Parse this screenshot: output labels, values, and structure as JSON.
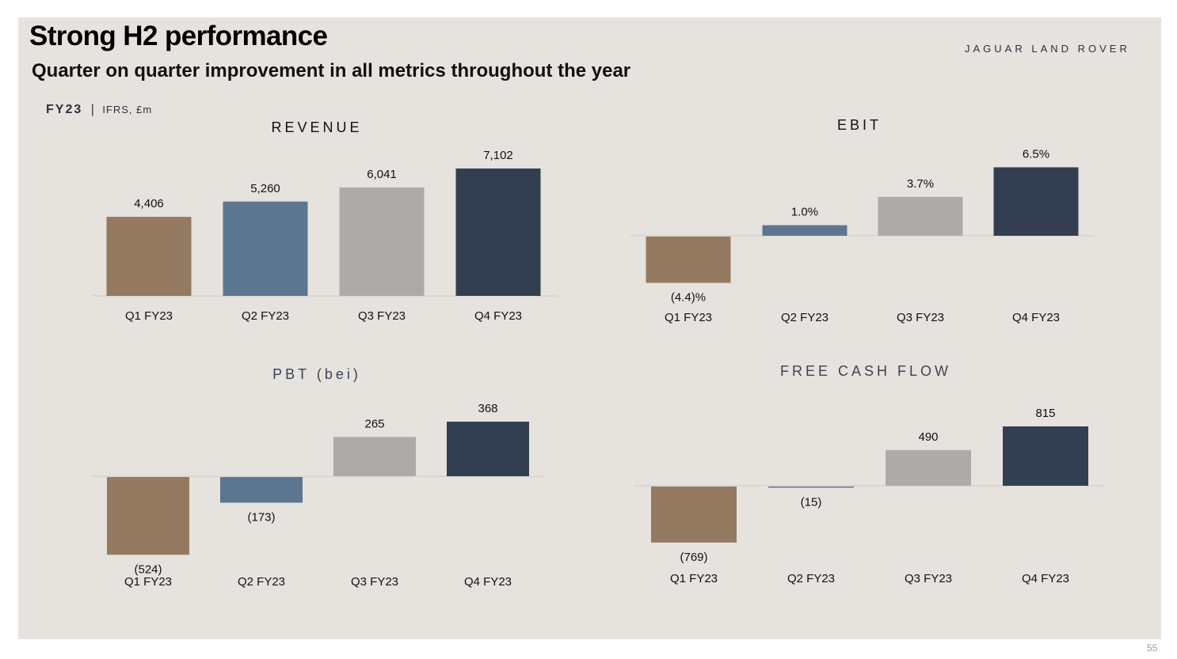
{
  "slide": {
    "title": "Strong H2 performance",
    "subtitle": "Quarter on quarter improvement in all metrics throughout the year",
    "brand": "JAGUAR LAND ROVER",
    "basis_year": "FY23",
    "basis_separator": "|",
    "basis_units": "IFRS, £m",
    "page_number": "55"
  },
  "colors": {
    "q1": "#937a61",
    "q2": "#5c7690",
    "q3": "#adaba9",
    "q4": "#333e51",
    "background": "#e6e2de",
    "axis": "#d6d2ce"
  },
  "chart_data": [
    {
      "id": "revenue",
      "type": "bar",
      "title": "REVENUE",
      "categories": [
        "Q1 FY23",
        "Q2 FY23",
        "Q3 FY23",
        "Q4 FY23"
      ],
      "values": [
        4406,
        5260,
        6041,
        7102
      ],
      "labels": [
        "4,406",
        "5,260",
        "6,041",
        "7,102"
      ]
    },
    {
      "id": "ebit",
      "type": "bar",
      "title": "EBIT",
      "categories": [
        "Q1 FY23",
        "Q2 FY23",
        "Q3 FY23",
        "Q4 FY23"
      ],
      "values": [
        -4.4,
        1.0,
        3.7,
        6.5
      ],
      "labels": [
        "(4.4)%",
        "1.0%",
        "3.7%",
        "6.5%"
      ]
    },
    {
      "id": "pbt",
      "type": "bar",
      "title": "PBT (bei)",
      "categories": [
        "Q1 FY23",
        "Q2 FY23",
        "Q3 FY23",
        "Q4 FY23"
      ],
      "values": [
        -524,
        -173,
        265,
        368
      ],
      "labels": [
        "(524)",
        "(173)",
        "265",
        "368"
      ]
    },
    {
      "id": "fcf",
      "type": "bar",
      "title": "FREE CASH FLOW",
      "categories": [
        "Q1 FY23",
        "Q2 FY23",
        "Q3 FY23",
        "Q4 FY23"
      ],
      "values": [
        -769,
        -15,
        490,
        815
      ],
      "labels": [
        "(769)",
        "(15)",
        "490",
        "815"
      ]
    }
  ]
}
